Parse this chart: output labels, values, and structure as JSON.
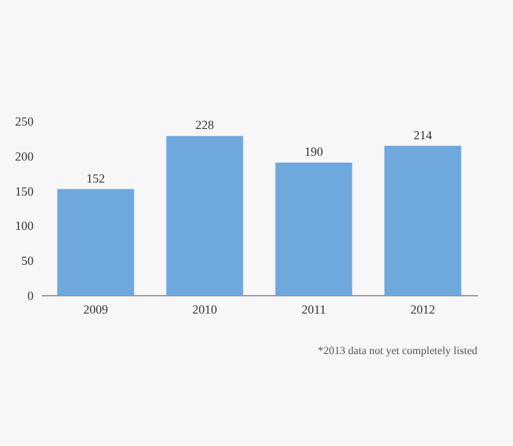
{
  "chart_data": {
    "type": "bar",
    "categories": [
      "2009",
      "2010",
      "2011",
      "2012"
    ],
    "values": [
      152,
      228,
      190,
      214
    ],
    "color": "#6fa8dc",
    "ylim": [
      0,
      250
    ],
    "yticks": [
      0,
      50,
      100,
      150,
      200,
      250
    ],
    "data_labels": true,
    "annotations": [
      "*2013 data not yet completely listed"
    ]
  }
}
